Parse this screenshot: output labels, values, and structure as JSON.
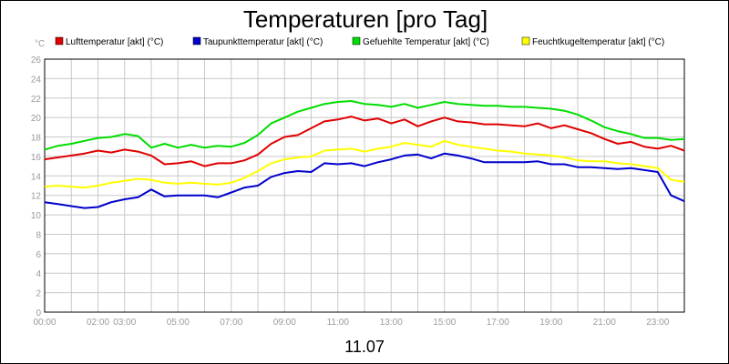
{
  "chart_data": {
    "type": "line",
    "title": "Temperaturen [pro Tag]",
    "unit_label": "°C",
    "date_label": "11.07",
    "ylim": [
      0,
      26
    ],
    "yticks": [
      0,
      2,
      4,
      6,
      8,
      10,
      12,
      14,
      16,
      18,
      20,
      22,
      24,
      26
    ],
    "xlim": [
      0,
      24
    ],
    "xticks": [
      {
        "x": 0,
        "label": "00:00"
      },
      {
        "x": 2,
        "label": "02:00"
      },
      {
        "x": 3,
        "label": "03:00"
      },
      {
        "x": 5,
        "label": "05:00"
      },
      {
        "x": 7,
        "label": "07:00"
      },
      {
        "x": 9,
        "label": "09:00"
      },
      {
        "x": 11,
        "label": "11:00"
      },
      {
        "x": 13,
        "label": "13:00"
      },
      {
        "x": 15,
        "label": "15:00"
      },
      {
        "x": 17,
        "label": "17:00"
      },
      {
        "x": 19,
        "label": "19:00"
      },
      {
        "x": 21,
        "label": "21:00"
      },
      {
        "x": 23,
        "label": "23:00"
      }
    ],
    "grid": true,
    "legend_position": "top",
    "series": [
      {
        "name": "Lufttemperatur [akt] (°C)",
        "color": "#e00000",
        "x": [
          0,
          0.5,
          1,
          1.5,
          2,
          2.5,
          3,
          3.5,
          4,
          4.5,
          5,
          5.5,
          6,
          6.5,
          7,
          7.5,
          8,
          8.5,
          9,
          9.5,
          10,
          10.5,
          11,
          11.5,
          12,
          12.5,
          13,
          13.5,
          14,
          14.5,
          15,
          15.5,
          16,
          16.5,
          17,
          17.5,
          18,
          18.5,
          19,
          19.5,
          20,
          20.5,
          21,
          21.5,
          22,
          22.5,
          23,
          23.5,
          24
        ],
        "y": [
          15.7,
          15.9,
          16.1,
          16.3,
          16.6,
          16.4,
          16.7,
          16.5,
          16.1,
          15.2,
          15.3,
          15.5,
          15.0,
          15.3,
          15.3,
          15.6,
          16.2,
          17.3,
          18.0,
          18.2,
          18.9,
          19.6,
          19.8,
          20.1,
          19.7,
          19.9,
          19.4,
          19.8,
          19.1,
          19.6,
          20.0,
          19.6,
          19.5,
          19.3,
          19.3,
          19.2,
          19.1,
          19.4,
          18.9,
          19.2,
          18.8,
          18.4,
          17.8,
          17.3,
          17.5,
          17.0,
          16.8,
          17.1,
          16.6
        ]
      },
      {
        "name": "Taupunkttemperatur [akt] (°C)",
        "color": "#0000cc",
        "x": [
          0,
          0.5,
          1,
          1.5,
          2,
          2.5,
          3,
          3.5,
          4,
          4.5,
          5,
          5.5,
          6,
          6.5,
          7,
          7.5,
          8,
          8.5,
          9,
          9.5,
          10,
          10.5,
          11,
          11.5,
          12,
          12.5,
          13,
          13.5,
          14,
          14.5,
          15,
          15.5,
          16,
          16.5,
          17,
          17.5,
          18,
          18.5,
          19,
          19.5,
          20,
          20.5,
          21,
          21.5,
          22,
          22.5,
          23,
          23.5,
          24
        ],
        "y": [
          11.3,
          11.1,
          10.9,
          10.7,
          10.8,
          11.3,
          11.6,
          11.8,
          12.6,
          11.9,
          12.0,
          12.0,
          12.0,
          11.8,
          12.3,
          12.8,
          13.0,
          13.9,
          14.3,
          14.5,
          14.4,
          15.3,
          15.2,
          15.3,
          15.0,
          15.4,
          15.7,
          16.1,
          16.2,
          15.8,
          16.3,
          16.1,
          15.8,
          15.4,
          15.4,
          15.4,
          15.4,
          15.5,
          15.2,
          15.2,
          14.9,
          14.9,
          14.8,
          14.7,
          14.8,
          14.6,
          14.4,
          12.0,
          11.4
        ]
      },
      {
        "name": "Gefuehlte Temperatur [akt] (°C)",
        "color": "#00dd00",
        "x": [
          0,
          0.5,
          1,
          1.5,
          2,
          2.5,
          3,
          3.5,
          4,
          4.5,
          5,
          5.5,
          6,
          6.5,
          7,
          7.5,
          8,
          8.5,
          9,
          9.5,
          10,
          10.5,
          11,
          11.5,
          12,
          12.5,
          13,
          13.5,
          14,
          14.5,
          15,
          15.5,
          16,
          16.5,
          17,
          17.5,
          18,
          18.5,
          19,
          19.5,
          20,
          20.5,
          21,
          21.5,
          22,
          22.5,
          23,
          23.5,
          24
        ],
        "y": [
          16.7,
          17.1,
          17.3,
          17.6,
          17.9,
          18.0,
          18.3,
          18.1,
          16.9,
          17.3,
          16.9,
          17.2,
          16.9,
          17.1,
          17.0,
          17.4,
          18.2,
          19.4,
          20.0,
          20.6,
          21.0,
          21.4,
          21.6,
          21.7,
          21.4,
          21.3,
          21.1,
          21.4,
          21.0,
          21.3,
          21.6,
          21.4,
          21.3,
          21.2,
          21.2,
          21.1,
          21.1,
          21.0,
          20.9,
          20.7,
          20.3,
          19.7,
          19.0,
          18.6,
          18.3,
          17.9,
          17.9,
          17.7,
          17.8
        ]
      },
      {
        "name": "Feuchtkugeltemperatur [akt] (°C)",
        "color": "#ffff00",
        "x": [
          0,
          0.5,
          1,
          1.5,
          2,
          2.5,
          3,
          3.5,
          4,
          4.5,
          5,
          5.5,
          6,
          6.5,
          7,
          7.5,
          8,
          8.5,
          9,
          9.5,
          10,
          10.5,
          11,
          11.5,
          12,
          12.5,
          13,
          13.5,
          14,
          14.5,
          15,
          15.5,
          16,
          16.5,
          17,
          17.5,
          18,
          18.5,
          19,
          19.5,
          20,
          20.5,
          21,
          21.5,
          22,
          22.5,
          23,
          23.5,
          24
        ],
        "y": [
          12.9,
          13.0,
          12.9,
          12.8,
          13.0,
          13.3,
          13.5,
          13.7,
          13.6,
          13.3,
          13.2,
          13.3,
          13.2,
          13.1,
          13.3,
          13.8,
          14.5,
          15.3,
          15.7,
          15.9,
          16.0,
          16.6,
          16.7,
          16.8,
          16.5,
          16.8,
          17.0,
          17.4,
          17.2,
          17.0,
          17.6,
          17.2,
          17.0,
          16.8,
          16.6,
          16.5,
          16.3,
          16.2,
          16.1,
          15.9,
          15.6,
          15.5,
          15.5,
          15.3,
          15.2,
          15.0,
          14.8,
          13.6,
          13.4
        ]
      }
    ]
  }
}
